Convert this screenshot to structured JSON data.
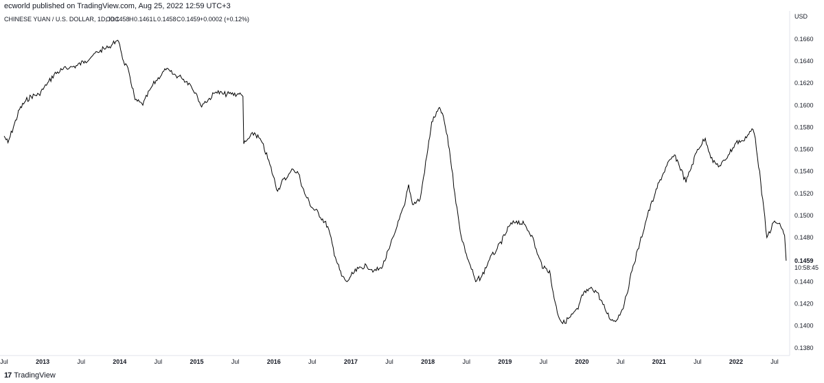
{
  "publish_line": "ecworld published on TradingView.com, Aug 25, 2022 12:59 UTC+3",
  "legend": {
    "symbol": "CHINESE YUAN / U.S. DOLLAR, 1D, IDC",
    "o_key": "O",
    "o_val": "0.1458",
    "h_key": "H",
    "h_val": "0.1461",
    "l_key": "L",
    "l_val": "0.1458",
    "c_key": "C",
    "c_val": "0.1459",
    "change": "+0.0002 (+0.12%)"
  },
  "price_scale": {
    "currency": "USD",
    "last_price": "0.1459",
    "countdown": "10:58:45"
  },
  "watermark": {
    "logo": "17",
    "text": "TradingView"
  },
  "colors": {
    "line": "#000000",
    "axis": "#e0e3eb",
    "text": "#131722",
    "label_bg": "#000000"
  },
  "chart_data": {
    "type": "line",
    "title": "CHINESE YUAN / U.S. DOLLAR, 1D, IDC",
    "ylabel": "USD",
    "ylim": [
      0.1378,
      0.1668
    ],
    "y_ticks": [
      "0.1380",
      "0.1400",
      "0.1420",
      "0.1440",
      "0.1460",
      "0.1480",
      "0.1500",
      "0.1520",
      "0.1540",
      "0.1560",
      "0.1580",
      "0.1600",
      "0.1620",
      "0.1640",
      "0.1660"
    ],
    "x_ticks": [
      "Jul",
      "2013",
      "Jul",
      "2014",
      "Jul",
      "2015",
      "Jul",
      "2016",
      "Jul",
      "2017",
      "Jul",
      "2018",
      "Jul",
      "2019",
      "Jul",
      "2020",
      "Jul",
      "2021",
      "Jul",
      "2022",
      "Jul"
    ],
    "x_tick_dates": [
      2012.5,
      2013.0,
      2013.5,
      2014.0,
      2014.5,
      2015.0,
      2015.5,
      2016.0,
      2016.5,
      2017.0,
      2017.5,
      2018.0,
      2018.5,
      2019.0,
      2019.5,
      2020.0,
      2020.5,
      2021.0,
      2021.5,
      2022.0,
      2022.5
    ],
    "xlim": [
      2012.5,
      2022.66
    ],
    "series": [
      {
        "x": [
          2012.5,
          2012.55,
          2012.62,
          2012.7,
          2012.78,
          2012.85,
          2012.95,
          2013.05,
          2013.15,
          2013.25,
          2013.35,
          2013.45,
          2013.55,
          2013.65,
          2013.75,
          2013.85,
          2013.95,
          2014.0,
          2014.05,
          2014.12,
          2014.2,
          2014.3,
          2014.4,
          2014.5,
          2014.6,
          2014.7,
          2014.8,
          2014.9,
          2015.0,
          2015.05,
          2015.15,
          2015.25,
          2015.35,
          2015.45,
          2015.55,
          2015.6,
          2015.61,
          2015.65,
          2015.75,
          2015.85,
          2015.95,
          2016.05,
          2016.1,
          2016.18,
          2016.25,
          2016.32,
          2016.4,
          2016.5,
          2016.58,
          2016.7,
          2016.8,
          2016.88,
          2016.95,
          2017.0,
          2017.1,
          2017.2,
          2017.3,
          2017.4,
          2017.5,
          2017.6,
          2017.7,
          2017.75,
          2017.8,
          2017.9,
          2018.0,
          2018.05,
          2018.1,
          2018.15,
          2018.2,
          2018.28,
          2018.35,
          2018.42,
          2018.5,
          2018.55,
          2018.62,
          2018.7,
          2018.8,
          2018.9,
          2019.0,
          2019.05,
          2019.15,
          2019.25,
          2019.35,
          2019.42,
          2019.5,
          2019.58,
          2019.6,
          2019.68,
          2019.75,
          2019.85,
          2019.95,
          2020.0,
          2020.05,
          2020.12,
          2020.2,
          2020.3,
          2020.38,
          2020.45,
          2020.55,
          2020.65,
          2020.75,
          2020.85,
          2020.95,
          2021.0,
          2021.1,
          2021.2,
          2021.25,
          2021.35,
          2021.4,
          2021.5,
          2021.6,
          2021.7,
          2021.8,
          2021.9,
          2022.0,
          2022.08,
          2022.15,
          2022.22,
          2022.25,
          2022.32,
          2022.4,
          2022.5,
          2022.58,
          2022.63,
          2022.65
        ],
        "y": [
          0.1572,
          0.1566,
          0.158,
          0.1596,
          0.1604,
          0.1608,
          0.161,
          0.1618,
          0.1628,
          0.1632,
          0.1634,
          0.1636,
          0.164,
          0.1645,
          0.165,
          0.1652,
          0.1658,
          0.1655,
          0.164,
          0.163,
          0.1605,
          0.16,
          0.1615,
          0.1625,
          0.1632,
          0.1628,
          0.1625,
          0.162,
          0.161,
          0.16,
          0.1605,
          0.1612,
          0.161,
          0.161,
          0.161,
          0.1608,
          0.1565,
          0.1568,
          0.1575,
          0.1566,
          0.1546,
          0.1522,
          0.153,
          0.1535,
          0.1542,
          0.1538,
          0.152,
          0.1507,
          0.1502,
          0.149,
          0.1462,
          0.1445,
          0.144,
          0.1445,
          0.1452,
          0.1455,
          0.145,
          0.1452,
          0.147,
          0.149,
          0.151,
          0.1528,
          0.151,
          0.1515,
          0.156,
          0.1585,
          0.159,
          0.1598,
          0.159,
          0.156,
          0.152,
          0.1485,
          0.1465,
          0.1455,
          0.144,
          0.1445,
          0.146,
          0.147,
          0.1482,
          0.149,
          0.1495,
          0.1492,
          0.1482,
          0.1465,
          0.1452,
          0.145,
          0.144,
          0.1412,
          0.1402,
          0.1408,
          0.1415,
          0.1428,
          0.143,
          0.1435,
          0.143,
          0.1415,
          0.1405,
          0.1405,
          0.142,
          0.145,
          0.1475,
          0.15,
          0.152,
          0.153,
          0.1545,
          0.1555,
          0.1548,
          0.153,
          0.154,
          0.156,
          0.157,
          0.1548,
          0.1545,
          0.1555,
          0.1566,
          0.1568,
          0.1573,
          0.1578,
          0.157,
          0.153,
          0.148,
          0.1495,
          0.149,
          0.1482,
          0.1459
        ]
      }
    ]
  }
}
